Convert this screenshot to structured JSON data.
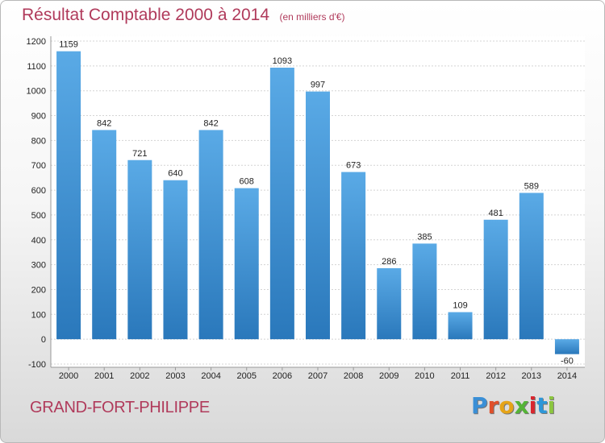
{
  "header": {
    "title": "Résultat Comptable 2000 à 2014",
    "subtitle": "(en milliers d'€)"
  },
  "footer": {
    "commune": "GRAND-FORT-PHILIPPE",
    "logo": "Proxiti"
  },
  "colors": {
    "accent": "#b03a5b",
    "bar_top": "#5aaae6",
    "bar_bottom": "#2a78bb"
  },
  "chart_data": {
    "type": "bar",
    "categories": [
      "2000",
      "2001",
      "2002",
      "2003",
      "2004",
      "2005",
      "2006",
      "2007",
      "2008",
      "2009",
      "2010",
      "2011",
      "2012",
      "2013",
      "2014"
    ],
    "values": [
      1159,
      842,
      721,
      640,
      842,
      608,
      1093,
      997,
      673,
      286,
      385,
      109,
      481,
      589,
      -60
    ],
    "ylim": [
      -100,
      1200
    ],
    "yticks": [
      -100,
      0,
      100,
      200,
      300,
      400,
      500,
      600,
      700,
      800,
      900,
      1000,
      1100,
      1200
    ],
    "grid": true,
    "legend": "none"
  }
}
